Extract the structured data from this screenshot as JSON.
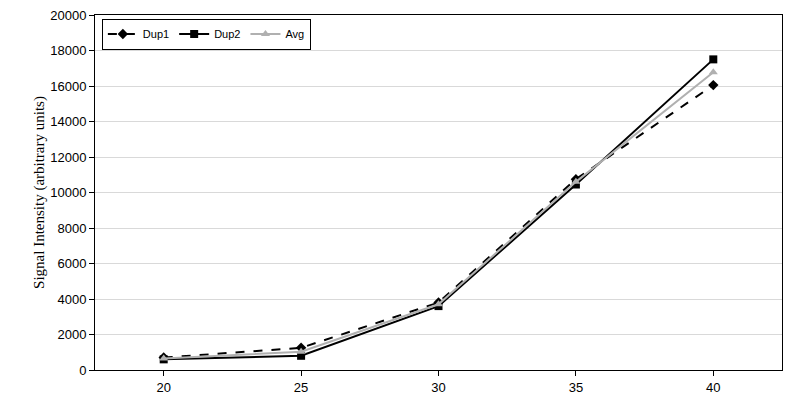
{
  "chart_data": {
    "type": "line",
    "y_label": "Signal Intensity (arbitrary units)",
    "x": [
      20,
      25,
      30,
      35,
      40
    ],
    "series": [
      {
        "name": "Dup1",
        "color": "#000000",
        "marker": "diamond",
        "line_style": "dash",
        "values": [
          700,
          1250,
          3800,
          10750,
          16050
        ]
      },
      {
        "name": "Dup2",
        "color": "#000000",
        "marker": "square",
        "line_style": "solid",
        "values": [
          600,
          800,
          3600,
          10450,
          17500
        ]
      },
      {
        "name": "Avg",
        "color": "#b0b0b0",
        "marker": "triangle-up",
        "line_style": "solid",
        "values": [
          650,
          1025,
          3700,
          10600,
          16775
        ]
      }
    ],
    "xlim": [
      17.5,
      42.5
    ],
    "xticks": [
      20,
      25,
      30,
      35,
      40
    ],
    "ylim": [
      0,
      20000
    ],
    "yticks": [
      0,
      2000,
      4000,
      6000,
      8000,
      10000,
      12000,
      14000,
      16000,
      18000,
      20000
    ],
    "grid": true,
    "legend": "top-left"
  }
}
